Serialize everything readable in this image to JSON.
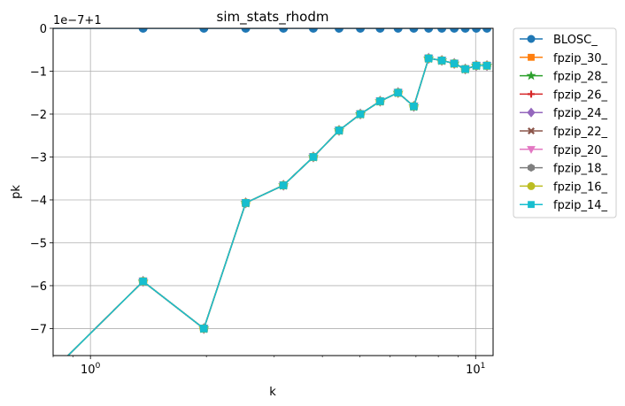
{
  "chart_data": {
    "type": "line",
    "title": "sim_stats_rhodm",
    "xlabel": "k",
    "ylabel": "pk",
    "x_scale": "log",
    "xlim": [
      0.8,
      11.1
    ],
    "ylim": [
      -7.63,
      0
    ],
    "y_offset_text": "1e−7+1",
    "grid": true,
    "legend_position": "outside-top-right",
    "x_major_ticks": [
      {
        "value": 1,
        "base": "10",
        "exp": "0"
      },
      {
        "value": 10,
        "base": "10",
        "exp": "1"
      }
    ],
    "y_ticks": [
      {
        "value": 0,
        "label": "0"
      },
      {
        "value": -1,
        "label": "−1"
      },
      {
        "value": -2,
        "label": "−2"
      },
      {
        "value": -3,
        "label": "−3"
      },
      {
        "value": -4,
        "label": "−4"
      },
      {
        "value": -5,
        "label": "−5"
      },
      {
        "value": -6,
        "label": "−6"
      },
      {
        "value": -7,
        "label": "−7"
      }
    ],
    "x_minor_ticks": [
      0.8,
      0.9,
      2,
      3,
      4,
      5,
      6,
      7,
      8,
      9
    ],
    "series": [
      {
        "name": "BLOSC_",
        "color": "#1f77b4",
        "marker": "circle",
        "x": [
          0.754,
          1.37,
          1.97,
          2.53,
          3.17,
          3.79,
          4.42,
          5.02,
          5.65,
          6.29,
          6.91,
          7.55,
          8.17,
          8.8,
          9.4,
          10.04,
          10.7
        ],
        "y": [
          0,
          0,
          0,
          0,
          0,
          0,
          0,
          0,
          0,
          0,
          0,
          0,
          0,
          0,
          0,
          0,
          0
        ]
      },
      {
        "name": "fpzip_30_",
        "color": "#ff7f0e",
        "marker": "square",
        "x": [
          0.754,
          1.37,
          1.97,
          2.53,
          3.17,
          3.79,
          4.42,
          5.02,
          5.65,
          6.29,
          6.91,
          7.55,
          8.17,
          8.8,
          9.4,
          10.04,
          10.7
        ],
        "y": [
          -8.2,
          -5.9,
          -7.0,
          -4.07,
          -3.66,
          -3.0,
          -2.38,
          -2.0,
          -1.7,
          -1.5,
          -1.82,
          -0.7,
          -0.75,
          -0.82,
          -0.95,
          -0.87,
          -0.87
        ]
      },
      {
        "name": "fpzip_28_",
        "color": "#2ca02c",
        "marker": "star",
        "x": [
          0.754,
          1.37,
          1.97,
          2.53,
          3.17,
          3.79,
          4.42,
          5.02,
          5.65,
          6.29,
          6.91,
          7.55,
          8.17,
          8.8,
          9.4,
          10.04,
          10.7
        ],
        "y": [
          -8.2,
          -5.9,
          -7.0,
          -4.07,
          -3.66,
          -3.0,
          -2.38,
          -2.0,
          -1.7,
          -1.5,
          -1.82,
          -0.7,
          -0.75,
          -0.82,
          -0.95,
          -0.87,
          -0.87
        ]
      },
      {
        "name": "fpzip_26_",
        "color": "#d62728",
        "marker": "plus",
        "x": [
          0.754,
          1.37,
          1.97,
          2.53,
          3.17,
          3.79,
          4.42,
          5.02,
          5.65,
          6.29,
          6.91,
          7.55,
          8.17,
          8.8,
          9.4,
          10.04,
          10.7
        ],
        "y": [
          -8.2,
          -5.9,
          -7.0,
          -4.07,
          -3.66,
          -3.0,
          -2.38,
          -2.0,
          -1.7,
          -1.5,
          -1.82,
          -0.7,
          -0.75,
          -0.82,
          -0.95,
          -0.87,
          -0.87
        ]
      },
      {
        "name": "fpzip_24_",
        "color": "#9467bd",
        "marker": "diamond",
        "x": [
          0.754,
          1.37,
          1.97,
          2.53,
          3.17,
          3.79,
          4.42,
          5.02,
          5.65,
          6.29,
          6.91,
          7.55,
          8.17,
          8.8,
          9.4,
          10.04,
          10.7
        ],
        "y": [
          -8.2,
          -5.9,
          -7.0,
          -4.07,
          -3.66,
          -3.0,
          -2.38,
          -2.0,
          -1.7,
          -1.5,
          -1.82,
          -0.7,
          -0.75,
          -0.82,
          -0.95,
          -0.87,
          -0.87
        ]
      },
      {
        "name": "fpzip_22_",
        "color": "#8c564b",
        "marker": "x",
        "x": [
          0.754,
          1.37,
          1.97,
          2.53,
          3.17,
          3.79,
          4.42,
          5.02,
          5.65,
          6.29,
          6.91,
          7.55,
          8.17,
          8.8,
          9.4,
          10.04,
          10.7
        ],
        "y": [
          -8.2,
          -5.9,
          -7.0,
          -4.07,
          -3.66,
          -3.0,
          -2.38,
          -2.0,
          -1.7,
          -1.5,
          -1.82,
          -0.7,
          -0.75,
          -0.82,
          -0.95,
          -0.87,
          -0.87
        ]
      },
      {
        "name": "fpzip_20_",
        "color": "#e377c2",
        "marker": "triangle-down",
        "x": [
          0.754,
          1.37,
          1.97,
          2.53,
          3.17,
          3.79,
          4.42,
          5.02,
          5.65,
          6.29,
          6.91,
          7.55,
          8.17,
          8.8,
          9.4,
          10.04,
          10.7
        ],
        "y": [
          -8.2,
          -5.9,
          -7.0,
          -4.07,
          -3.66,
          -3.0,
          -2.38,
          -2.0,
          -1.7,
          -1.5,
          -1.82,
          -0.7,
          -0.75,
          -0.82,
          -0.95,
          -0.87,
          -0.87
        ]
      },
      {
        "name": "fpzip_18_",
        "color": "#7f7f7f",
        "marker": "hexagon",
        "x": [
          0.754,
          1.37,
          1.97,
          2.53,
          3.17,
          3.79,
          4.42,
          5.02,
          5.65,
          6.29,
          6.91,
          7.55,
          8.17,
          8.8,
          9.4,
          10.04,
          10.7
        ],
        "y": [
          -8.2,
          -5.9,
          -7.0,
          -4.07,
          -3.66,
          -3.0,
          -2.38,
          -2.0,
          -1.7,
          -1.5,
          -1.82,
          -0.7,
          -0.75,
          -0.82,
          -0.95,
          -0.87,
          -0.87
        ]
      },
      {
        "name": "fpzip_16_",
        "color": "#bcbd22",
        "marker": "circle",
        "x": [
          0.754,
          1.37,
          1.97,
          2.53,
          3.17,
          3.79,
          4.42,
          5.02,
          5.65,
          6.29,
          6.91,
          7.55,
          8.17,
          8.8,
          9.4,
          10.04,
          10.7
        ],
        "y": [
          -8.2,
          -5.9,
          -7.0,
          -4.07,
          -3.66,
          -3.0,
          -2.38,
          -2.0,
          -1.7,
          -1.5,
          -1.82,
          -0.7,
          -0.75,
          -0.82,
          -0.95,
          -0.87,
          -0.87
        ]
      },
      {
        "name": "fpzip_14_",
        "color": "#17becf",
        "marker": "square",
        "x": [
          0.754,
          1.37,
          1.97,
          2.53,
          3.17,
          3.79,
          4.42,
          5.02,
          5.65,
          6.29,
          6.91,
          7.55,
          8.17,
          8.8,
          9.4,
          10.04,
          10.7
        ],
        "y": [
          -8.2,
          -5.9,
          -7.0,
          -4.07,
          -3.66,
          -3.0,
          -2.38,
          -2.0,
          -1.7,
          -1.5,
          -1.82,
          -0.7,
          -0.75,
          -0.82,
          -0.95,
          -0.87,
          -0.87
        ]
      }
    ]
  }
}
